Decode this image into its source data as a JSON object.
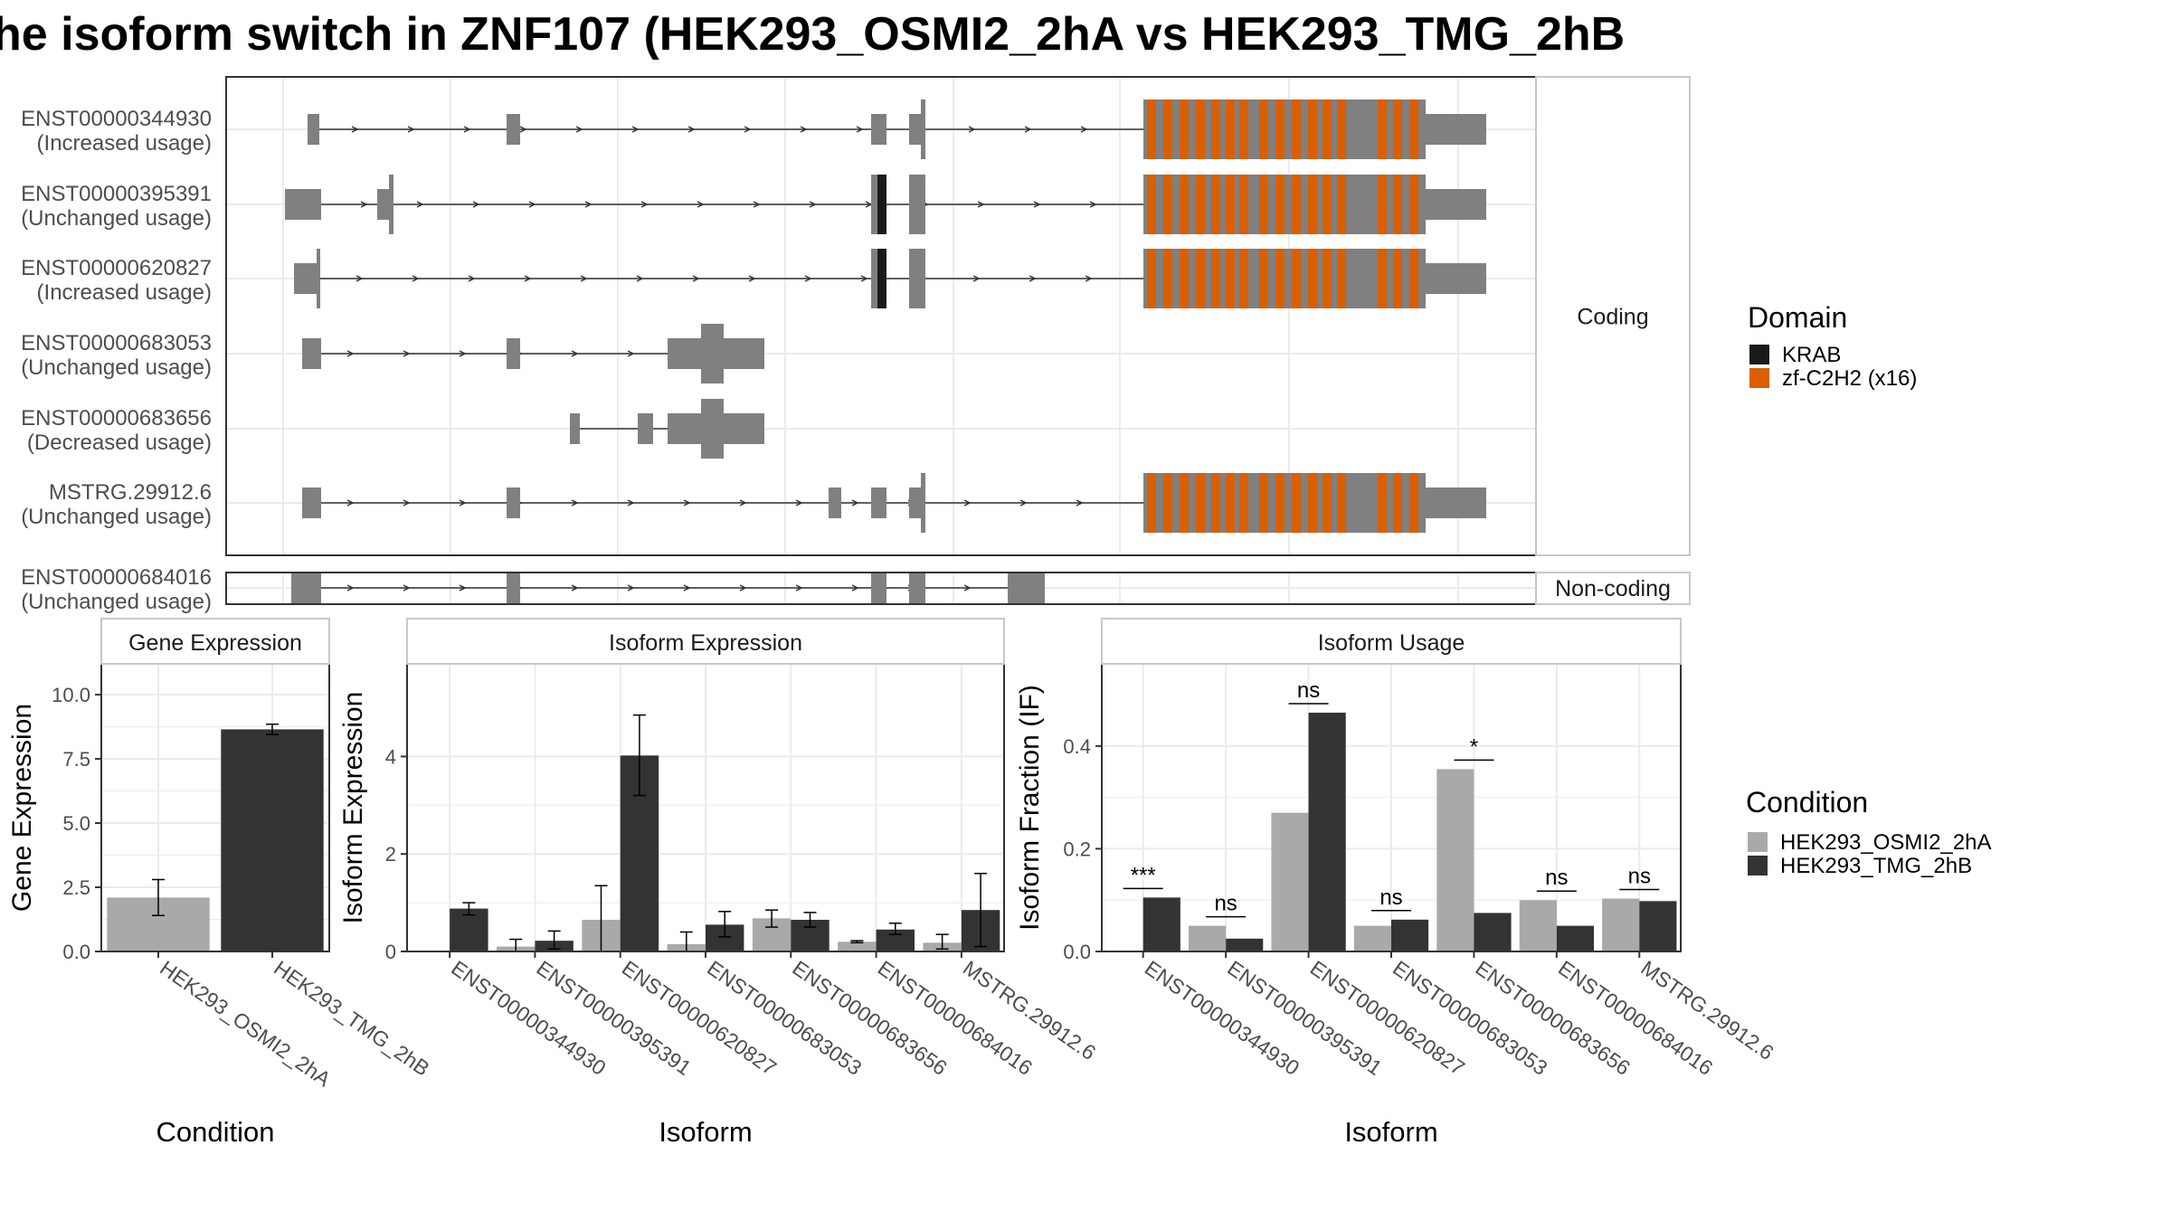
{
  "title": "he isoform switch in ZNF107 (HEK293_OSMI2_2hA vs HEK293_TMG_2hB",
  "colors": {
    "exon": "#808080",
    "krab": "#1a1a1a",
    "zf": "#d95f02",
    "cond_a": "#a9a9a9",
    "cond_b": "#333333",
    "grid": "#ebebeb",
    "strip": "#ffffff",
    "panel_border": "#333333"
  },
  "transcripts": {
    "coding_label": "Coding",
    "noncoding_label": "Non-coding",
    "coding": [
      {
        "id": "ENST00000344930",
        "usage": "(Increased usage)"
      },
      {
        "id": "ENST00000395391",
        "usage": "(Unchanged usage)"
      },
      {
        "id": "ENST00000620827",
        "usage": "(Increased usage)"
      },
      {
        "id": "ENST00000683053",
        "usage": "(Unchanged usage)"
      },
      {
        "id": "ENST00000683656",
        "usage": "(Decreased usage)"
      },
      {
        "id": "MSTRG.29912.6",
        "usage": "(Unchanged usage)"
      }
    ],
    "noncoding": [
      {
        "id": "ENST00000684016",
        "usage": "(Unchanged usage)"
      }
    ]
  },
  "domain_legend": {
    "title": "Domain",
    "items": [
      {
        "label": "KRAB",
        "color": "#1a1a1a"
      },
      {
        "label": "zf-C2H2 (x16)",
        "color": "#d95f02"
      }
    ]
  },
  "condition_legend": {
    "title": "Condition",
    "items": [
      {
        "label": "HEK293_OSMI2_2hA",
        "color": "#a9a9a9"
      },
      {
        "label": "HEK293_TMG_2hB",
        "color": "#333333"
      }
    ]
  },
  "chart_data": [
    {
      "type": "bar",
      "title": "Gene Expression",
      "xlabel": "Condition",
      "ylabel": "Gene Expression",
      "categories": [
        "HEK293_OSMI2_2hA",
        "HEK293_TMG_2hB"
      ],
      "values": [
        2.1,
        8.65
      ],
      "errors": [
        [
          1.4,
          2.8
        ],
        [
          8.45,
          8.85
        ]
      ],
      "ylim": [
        0,
        11.2
      ],
      "yticks": [
        0.0,
        2.5,
        5.0,
        7.5,
        10.0
      ],
      "ytick_labels": [
        "0.0",
        "2.5",
        "5.0",
        "7.5",
        "10.0"
      ]
    },
    {
      "type": "bar",
      "title": "Isoform Expression",
      "xlabel": "Isoform",
      "ylabel": "Isoform Expression",
      "categories": [
        "ENST00000344930",
        "ENST00000395391",
        "ENST00000620827",
        "ENST00000683053",
        "ENST00000683656",
        "ENST00000684016",
        "MSTRG.29912.6"
      ],
      "series": [
        {
          "name": "HEK293_OSMI2_2hA",
          "values": [
            0.0,
            0.1,
            0.65,
            0.15,
            0.68,
            0.2,
            0.18
          ],
          "errors": [
            [
              0.0,
              0.0
            ],
            [
              0.0,
              0.25
            ],
            [
              0.0,
              1.35
            ],
            [
              0.0,
              0.4
            ],
            [
              0.5,
              0.85
            ],
            [
              0.18,
              0.22
            ],
            [
              0.05,
              0.35
            ]
          ]
        },
        {
          "name": "HEK293_TMG_2hB",
          "values": [
            0.88,
            0.22,
            4.02,
            0.55,
            0.65,
            0.45,
            0.85
          ],
          "errors": [
            [
              0.75,
              1.0
            ],
            [
              0.05,
              0.42
            ],
            [
              3.2,
              4.85
            ],
            [
              0.3,
              0.82
            ],
            [
              0.5,
              0.8
            ],
            [
              0.35,
              0.58
            ],
            [
              0.1,
              1.6
            ]
          ]
        }
      ],
      "ylim": [
        0,
        5.9
      ],
      "yticks": [
        0,
        2,
        4
      ],
      "ytick_labels": [
        "0",
        "2",
        "4"
      ]
    },
    {
      "type": "bar",
      "title": "Isoform Usage",
      "xlabel": "Isoform",
      "ylabel": "Isoform Fraction (IF)",
      "categories": [
        "ENST00000344930",
        "ENST00000395391",
        "ENST00000620827",
        "ENST00000683053",
        "ENST00000683656",
        "ENST00000684016",
        "MSTRG.29912.6"
      ],
      "series": [
        {
          "name": "HEK293_OSMI2_2hA",
          "values": [
            0.0,
            0.05,
            0.27,
            0.05,
            0.355,
            0.1,
            0.103
          ]
        },
        {
          "name": "HEK293_TMG_2hB",
          "values": [
            0.105,
            0.025,
            0.465,
            0.062,
            0.075,
            0.05,
            0.098
          ]
        }
      ],
      "significance": [
        "***",
        "ns",
        "ns",
        "ns",
        "*",
        "ns",
        "ns"
      ],
      "ylim": [
        0,
        0.56
      ],
      "yticks": [
        0.0,
        0.2,
        0.4
      ],
      "ytick_labels": [
        "0.0",
        "0.2",
        "0.4"
      ]
    }
  ]
}
